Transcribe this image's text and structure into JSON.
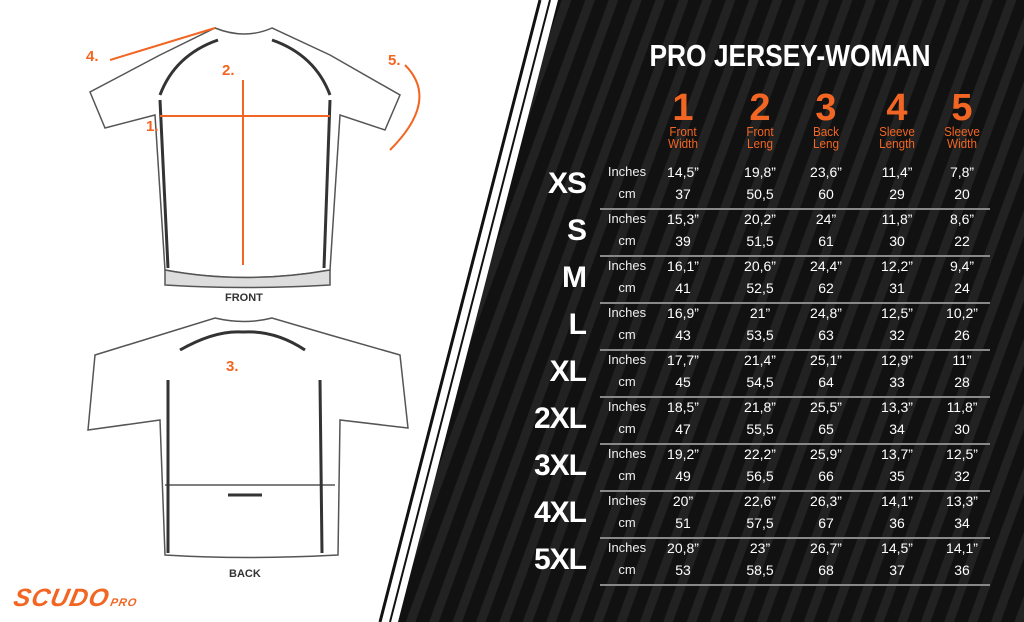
{
  "title": "PRO JERSEY-WOMAN",
  "brand": {
    "name": "SCUDO",
    "suffix": "PRO"
  },
  "colors": {
    "accent": "#f26522",
    "background": "#111111",
    "text": "#ffffff"
  },
  "diagram": {
    "front_label": "FRONT",
    "back_label": "BACK",
    "markers": [
      "1.",
      "2.",
      "3.",
      "4.",
      "5."
    ]
  },
  "columns": [
    {
      "number": "1",
      "label_1": "Front",
      "label_2": "Width"
    },
    {
      "number": "2",
      "label_1": "Front",
      "label_2": "Leng"
    },
    {
      "number": "3",
      "label_1": "Back",
      "label_2": "Leng"
    },
    {
      "number": "4",
      "label_1": "Sleeve",
      "label_2": "Length"
    },
    {
      "number": "5",
      "label_1": "Sleeve",
      "label_2": "Width"
    }
  ],
  "units": {
    "inches": "Inches",
    "cm": "cm"
  },
  "rows": [
    {
      "size": "XS",
      "inches": [
        "14,5”",
        "19,8”",
        "23,6”",
        "11,4”",
        "7,8”"
      ],
      "cm": [
        "37",
        "50,5",
        "60",
        "29",
        "20"
      ]
    },
    {
      "size": "S",
      "inches": [
        "15,3”",
        "20,2”",
        "24”",
        "11,8”",
        "8,6”"
      ],
      "cm": [
        "39",
        "51,5",
        "61",
        "30",
        "22"
      ]
    },
    {
      "size": "M",
      "inches": [
        "16,1”",
        "20,6”",
        "24,4”",
        "12,2”",
        "9,4”"
      ],
      "cm": [
        "41",
        "52,5",
        "62",
        "31",
        "24"
      ]
    },
    {
      "size": "L",
      "inches": [
        "16,9”",
        "21”",
        "24,8”",
        "12,5”",
        "10,2”"
      ],
      "cm": [
        "43",
        "53,5",
        "63",
        "32",
        "26"
      ]
    },
    {
      "size": "XL",
      "inches": [
        "17,7”",
        "21,4”",
        "25,1”",
        "12,9”",
        "11”"
      ],
      "cm": [
        "45",
        "54,5",
        "64",
        "33",
        "28"
      ]
    },
    {
      "size": "2XL",
      "inches": [
        "18,5”",
        "21,8”",
        "25,5”",
        "13,3”",
        "11,8”"
      ],
      "cm": [
        "47",
        "55,5",
        "65",
        "34",
        "30"
      ]
    },
    {
      "size": "3XL",
      "inches": [
        "19,2”",
        "22,2”",
        "25,9”",
        "13,7”",
        "12,5”"
      ],
      "cm": [
        "49",
        "56,5",
        "66",
        "35",
        "32"
      ]
    },
    {
      "size": "4XL",
      "inches": [
        "20”",
        "22,6”",
        "26,3”",
        "14,1”",
        "13,3”"
      ],
      "cm": [
        "51",
        "57,5",
        "67",
        "36",
        "34"
      ]
    },
    {
      "size": "5XL",
      "inches": [
        "20,8”",
        "23”",
        "26,7”",
        "14,5”",
        "14,1”"
      ],
      "cm": [
        "53",
        "58,5",
        "68",
        "37",
        "36"
      ]
    }
  ]
}
